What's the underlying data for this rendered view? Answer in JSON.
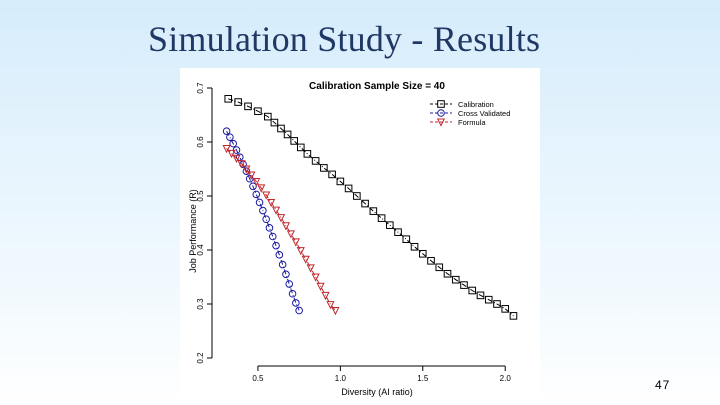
{
  "slide": {
    "title": "Simulation Study - Results",
    "page_number": "47"
  },
  "chart_data": {
    "type": "scatter",
    "title": "Calibration Sample Size = 40",
    "xlabel": "Diversity (AI ratio)",
    "ylabel": "Job Performance (R)",
    "xlim": [
      0.27,
      2.12
    ],
    "ylim": [
      0.2,
      0.7
    ],
    "x_ticks": [
      0.5,
      1.0,
      1.5,
      2.0
    ],
    "x_tick_labels": [
      "0.5",
      "1.0",
      "1.5",
      "2.0"
    ],
    "y_ticks": [
      0.2,
      0.3,
      0.4,
      0.5,
      0.6,
      0.7
    ],
    "y_tick_labels": [
      "0.2",
      "0.3",
      "0.4",
      "0.5",
      "0.6",
      "0.7"
    ],
    "legend_position": "top-right",
    "series": [
      {
        "name": "Calibration",
        "marker": "square",
        "color": "#000000",
        "x": [
          0.32,
          0.38,
          0.44,
          0.5,
          0.56,
          0.6,
          0.64,
          0.68,
          0.72,
          0.76,
          0.8,
          0.85,
          0.9,
          0.95,
          1.0,
          1.05,
          1.1,
          1.15,
          1.2,
          1.25,
          1.3,
          1.35,
          1.4,
          1.45,
          1.5,
          1.55,
          1.6,
          1.65,
          1.7,
          1.75,
          1.8,
          1.85,
          1.9,
          1.95,
          2.0,
          2.05
        ],
        "y": [
          0.68,
          0.674,
          0.666,
          0.657,
          0.647,
          0.636,
          0.625,
          0.614,
          0.602,
          0.59,
          0.578,
          0.565,
          0.552,
          0.54,
          0.527,
          0.514,
          0.5,
          0.486,
          0.472,
          0.459,
          0.446,
          0.433,
          0.42,
          0.406,
          0.393,
          0.38,
          0.368,
          0.356,
          0.345,
          0.335,
          0.325,
          0.316,
          0.308,
          0.3,
          0.291,
          0.278
        ]
      },
      {
        "name": "Cross Validated",
        "marker": "circle",
        "color": "#1a1aa0",
        "x": [
          0.31,
          0.33,
          0.35,
          0.37,
          0.39,
          0.41,
          0.43,
          0.45,
          0.47,
          0.49,
          0.51,
          0.53,
          0.55,
          0.57,
          0.59,
          0.61,
          0.63,
          0.65,
          0.67,
          0.69,
          0.71,
          0.73,
          0.75
        ],
        "y": [
          0.62,
          0.609,
          0.597,
          0.585,
          0.572,
          0.559,
          0.546,
          0.532,
          0.518,
          0.503,
          0.488,
          0.473,
          0.457,
          0.441,
          0.425,
          0.408,
          0.391,
          0.373,
          0.355,
          0.337,
          0.319,
          0.302,
          0.288
        ]
      },
      {
        "name": "Formula",
        "marker": "triangle-down",
        "color": "#c0282d",
        "x": [
          0.31,
          0.34,
          0.37,
          0.4,
          0.43,
          0.46,
          0.49,
          0.52,
          0.55,
          0.58,
          0.61,
          0.64,
          0.67,
          0.7,
          0.73,
          0.76,
          0.79,
          0.82,
          0.85,
          0.88,
          0.91,
          0.94,
          0.97
        ],
        "y": [
          0.588,
          0.579,
          0.57,
          0.56,
          0.55,
          0.539,
          0.527,
          0.515,
          0.502,
          0.488,
          0.474,
          0.46,
          0.445,
          0.43,
          0.415,
          0.399,
          0.383,
          0.367,
          0.35,
          0.333,
          0.316,
          0.299,
          0.288
        ]
      }
    ]
  }
}
